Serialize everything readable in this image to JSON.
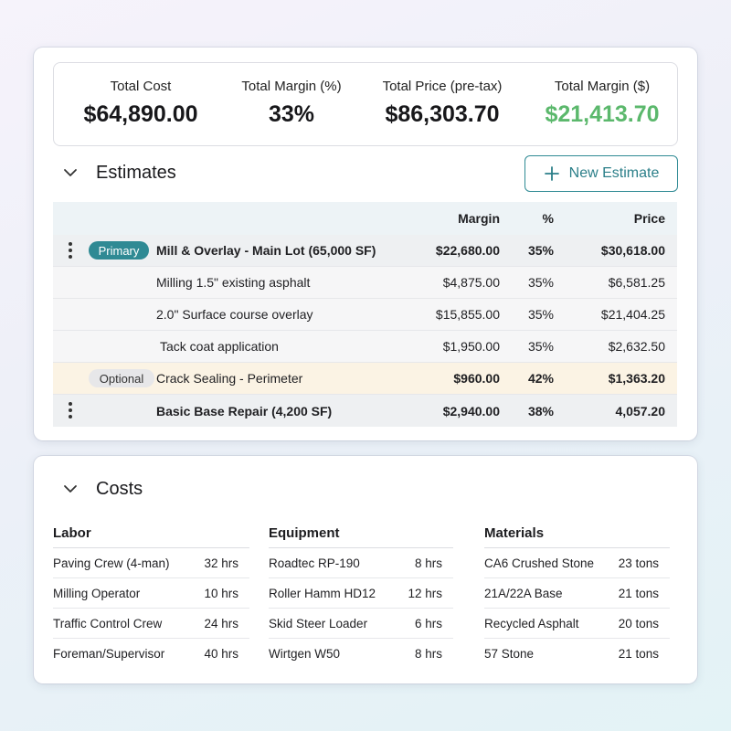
{
  "summary": [
    {
      "label": "Total Cost",
      "value": "$64,890.00"
    },
    {
      "label": "Total Margin (%)",
      "value": "33%"
    },
    {
      "label": "Total Price (pre-tax)",
      "value": "$86,303.70"
    },
    {
      "label": "Total Margin ($)",
      "value": "$21,413.70",
      "color": "#5bb86c"
    }
  ],
  "estimates": {
    "title": "Estimates",
    "new_button": "New Estimate",
    "columns": {
      "margin": "Margin",
      "pct": "%",
      "price": "Price"
    },
    "rows": [
      {
        "type": "group",
        "badge": "Primary",
        "name": "Mill & Overlay - Main Lot (65,000 SF)",
        "margin": "$22,680.00",
        "pct": "35%",
        "price": "$30,618.00"
      },
      {
        "type": "child",
        "name": "Milling 1.5\" existing asphalt",
        "margin": "$4,875.00",
        "pct": "35%",
        "price": "$6,581.25"
      },
      {
        "type": "child",
        "name": "2.0\" Surface course overlay",
        "margin": "$15,855.00",
        "pct": "35%",
        "price": "$21,404.25"
      },
      {
        "type": "child",
        "name": "Tack coat application",
        "margin": "$1,950.00",
        "pct": "35%",
        "price": "$2,632.50"
      },
      {
        "type": "optional",
        "badge": "Optional",
        "name": "Crack Sealing - Perimeter",
        "margin": "$960.00",
        "pct": "42%",
        "price": "$1,363.20"
      },
      {
        "type": "group",
        "name": "Basic Base Repair (4,200 SF)",
        "margin": "$2,940.00",
        "pct": "38%",
        "price": "4,057.20"
      }
    ]
  },
  "costs": {
    "title": "Costs",
    "labor": {
      "title": "Labor",
      "items": [
        {
          "name": "Paving Crew (4-man)",
          "qty": "32 hrs"
        },
        {
          "name": "Milling Operator",
          "qty": "10 hrs"
        },
        {
          "name": "Traffic Control Crew",
          "qty": "24 hrs"
        },
        {
          "name": "Foreman/Supervisor",
          "qty": "40 hrs"
        }
      ]
    },
    "equipment": {
      "title": "Equipment",
      "items": [
        {
          "name": "Roadtec RP-190",
          "qty": "8 hrs"
        },
        {
          "name": "Roller Hamm HD12",
          "qty": "12 hrs"
        },
        {
          "name": "Skid Steer Loader",
          "qty": "6 hrs"
        },
        {
          "name": "Wirtgen W50",
          "qty": "8 hrs"
        }
      ]
    },
    "materials": {
      "title": "Materials",
      "items": [
        {
          "name": "CA6 Crushed Stone",
          "qty": "23 tons"
        },
        {
          "name": "21A/22A Base",
          "qty": "21 tons"
        },
        {
          "name": "Recycled Asphalt",
          "qty": "20 tons"
        },
        {
          "name": "57 Stone",
          "qty": "21 tons"
        }
      ]
    }
  },
  "colors": {
    "accent": "#2f8a94",
    "positive": "#5bb86c",
    "optional_row": "#fbf3e4"
  }
}
